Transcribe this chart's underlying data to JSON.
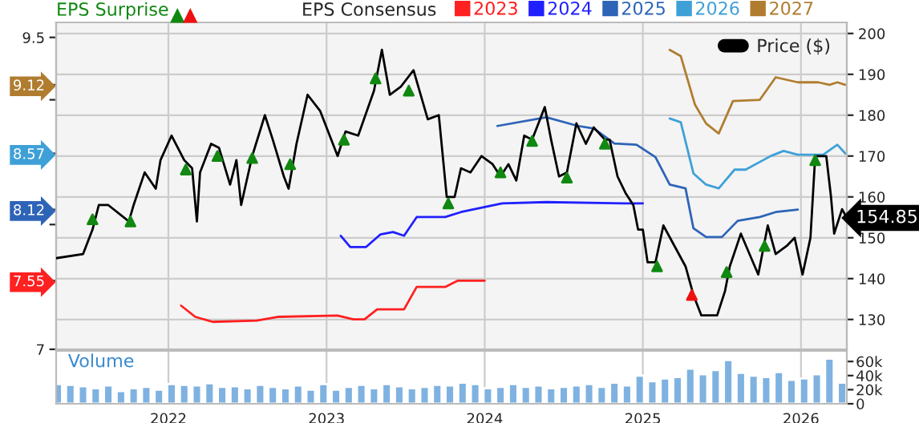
{
  "chart_data": [
    {
      "type": "line",
      "legend_title": "EPS Consensus",
      "legend": "top right",
      "grid": true,
      "tick_labels": "y",
      "xlim": [
        2021.29,
        2026.29
      ],
      "xticks": [
        {
          "value": 2022,
          "label": null
        },
        {
          "value": 2023,
          "label": null
        },
        {
          "value": 2024,
          "label": null
        },
        {
          "value": 2025,
          "label": null
        },
        {
          "value": 2026,
          "label": null
        }
      ],
      "ylim": [
        7.0,
        9.62
      ],
      "yticks": [
        7,
        7.55,
        {
          "value": 8,
          "label": null
        },
        8.12,
        8.57,
        {
          "value": 9,
          "label": null
        },
        9.12,
        9.5
      ],
      "y2lim": [
        122.7,
        202.7
      ],
      "y2ticks": [
        130,
        140,
        150,
        160,
        170,
        180,
        190,
        200
      ],
      "series": [
        {
          "name": "2023",
          "color": "#ff2020",
          "axis": "y",
          "x": [
            2022.08,
            2022.17,
            2022.28,
            2022.56,
            2022.69,
            2023.07,
            2023.17,
            2023.24,
            2023.32,
            2023.49,
            2023.57,
            2023.75,
            2023.83,
            2024.0
          ],
          "values": [
            7.35,
            7.26,
            7.22,
            7.23,
            7.26,
            7.27,
            7.24,
            7.24,
            7.32,
            7.32,
            7.5,
            7.5,
            7.55,
            7.55
          ]
        },
        {
          "name": "2024",
          "color": "#2020ff",
          "axis": "y",
          "x": [
            2023.09,
            2023.15,
            2023.25,
            2023.34,
            2023.42,
            2023.49,
            2023.57,
            2023.75,
            2023.85,
            2024.11,
            2024.39,
            2024.89,
            2025.0
          ],
          "values": [
            7.91,
            7.82,
            7.82,
            7.92,
            7.94,
            7.91,
            8.06,
            8.06,
            8.1,
            8.17,
            8.18,
            8.17,
            8.17
          ]
        },
        {
          "name": "2025",
          "color": "#2e64b8",
          "axis": "y",
          "x": [
            2024.08,
            2024.39,
            2024.59,
            2024.69,
            2024.82,
            2024.96,
            2025.08,
            2025.17,
            2025.27,
            2025.32,
            2025.4,
            2025.5,
            2025.6,
            2025.74,
            2025.84,
            2025.98
          ],
          "values": [
            8.79,
            8.86,
            8.79,
            8.77,
            8.65,
            8.64,
            8.54,
            8.32,
            8.29,
            7.97,
            7.9,
            7.9,
            8.03,
            8.06,
            8.1,
            8.12
          ]
        },
        {
          "name": "2026",
          "color": "#3fa0d8",
          "axis": "y",
          "x": [
            2025.17,
            2025.24,
            2025.32,
            2025.4,
            2025.48,
            2025.58,
            2025.65,
            2025.81,
            2025.89,
            2025.98,
            2026.14,
            2026.23,
            2026.28
          ],
          "values": [
            8.85,
            8.82,
            8.41,
            8.32,
            8.29,
            8.44,
            8.44,
            8.55,
            8.59,
            8.56,
            8.56,
            8.64,
            8.57
          ]
        },
        {
          "name": "2027",
          "color": "#b07d30",
          "axis": "y",
          "x": [
            2025.17,
            2025.24,
            2025.33,
            2025.4,
            2025.48,
            2025.57,
            2025.74,
            2025.84,
            2025.98,
            2026.11,
            2026.18,
            2026.23,
            2026.28
          ],
          "values": [
            9.4,
            9.35,
            8.96,
            8.81,
            8.73,
            8.99,
            9.0,
            9.18,
            9.14,
            9.14,
            9.12,
            9.14,
            9.12
          ]
        },
        {
          "name": "Price ($)",
          "color": "#000000",
          "axis": "y2",
          "x": [
            2021.29,
            2021.46,
            2021.52,
            2021.56,
            2021.62,
            2021.75,
            2021.78,
            2021.85,
            2021.92,
            2021.95,
            2022.02,
            2022.1,
            2022.15,
            2022.18,
            2022.2,
            2022.27,
            2022.32,
            2022.39,
            2022.43,
            2022.46,
            2022.53,
            2022.61,
            2022.66,
            2022.73,
            2022.76,
            2022.81,
            2022.88,
            2022.96,
            2023.07,
            2023.12,
            2023.2,
            2023.3,
            2023.35,
            2023.4,
            2023.47,
            2023.55,
            2023.64,
            2023.71,
            2023.76,
            2023.81,
            2023.85,
            2023.91,
            2023.98,
            2024.05,
            2024.1,
            2024.15,
            2024.2,
            2024.25,
            2024.3,
            2024.34,
            2024.38,
            2024.42,
            2024.47,
            2024.52,
            2024.58,
            2024.64,
            2024.69,
            2024.76,
            2024.79,
            2024.84,
            2024.89,
            2024.94,
            2024.97,
            2025.0,
            2025.03,
            2025.08,
            2025.13,
            2025.2,
            2025.27,
            2025.32,
            2025.37,
            2025.47,
            2025.52,
            2025.55,
            2025.62,
            2025.73,
            2025.79,
            2025.84,
            2025.91,
            2025.96,
            2026.01,
            2026.06,
            2026.09,
            2026.16,
            2026.19,
            2026.21,
            2026.26,
            2026.29
          ],
          "values": [
            145,
            146,
            152,
            158,
            158,
            154,
            158,
            166,
            162,
            169,
            175,
            169,
            167,
            154,
            166,
            173,
            172,
            163,
            169,
            158,
            170,
            180,
            174,
            165,
            162,
            173,
            185,
            181,
            170,
            176,
            175,
            186,
            196,
            185,
            187,
            191,
            179,
            180,
            160,
            160,
            167,
            166,
            170,
            168,
            165,
            168,
            164,
            175,
            174,
            178,
            182,
            174,
            165,
            166,
            178,
            173,
            177,
            174,
            174,
            165,
            161,
            158,
            152,
            152,
            144,
            144,
            153,
            148,
            143,
            136,
            131,
            131,
            137,
            143,
            151,
            141,
            153,
            146,
            148,
            150,
            141,
            150,
            170,
            170,
            160,
            151,
            157,
            154.85
          ],
          "value_labels": [
            null,
            null,
            null,
            null,
            null,
            null,
            null,
            null,
            null,
            null,
            null,
            null,
            null,
            null,
            null,
            null,
            null,
            null,
            null,
            null,
            null,
            null,
            null,
            null,
            null,
            null,
            null,
            null,
            null,
            null,
            null,
            null,
            null,
            null,
            null,
            null,
            null,
            null,
            null,
            null,
            null,
            null,
            null,
            null,
            null,
            null,
            null,
            null,
            null,
            null,
            null,
            null,
            null,
            null,
            null,
            null,
            null,
            null,
            null,
            null,
            null,
            null,
            null,
            null,
            null,
            null,
            null,
            null,
            null,
            null,
            null,
            null,
            null,
            null,
            null,
            null,
            null,
            null,
            null,
            null,
            null,
            null,
            null,
            null,
            null,
            null,
            null,
            "154.85"
          ]
        },
        {
          "name": "EPS Surprise",
          "type": "scatter",
          "marker": "triangle",
          "color": "#118811",
          "axis": "y2",
          "x": [
            2021.52,
            2021.76,
            2022.11,
            2022.31,
            2022.53,
            2022.77,
            2023.11,
            2023.31,
            2023.52,
            2023.77,
            2024.1,
            2024.3,
            2024.52,
            2024.76,
            2025.09,
            2025.53,
            2025.77,
            2026.09
          ],
          "values": [
            154.5,
            154,
            166.7,
            170,
            169.5,
            168,
            174,
            189,
            186,
            158.4,
            166,
            173.7,
            164.7,
            173,
            143,
            141.6,
            148,
            169
          ]
        },
        {
          "type": "scatter",
          "marker": "triangle",
          "color": "#ee1111",
          "axis": "y2",
          "x": [
            2025.31
          ],
          "values": [
            136
          ]
        }
      ]
    },
    {
      "type": "bar",
      "title": "Volume",
      "color": "#7fb2e0",
      "grid": "x",
      "xlim": [
        2021.29,
        2026.29
      ],
      "xticks": [
        2022,
        2023,
        2024,
        2025,
        2026
      ],
      "ylim": [
        0,
        75000
      ],
      "yticks": [
        0,
        {
          "value": 20000,
          "label": "20k"
        },
        {
          "value": 40000,
          "label": "40k"
        },
        {
          "value": 60000,
          "label": "60k"
        }
      ],
      "x": [
        2021.3,
        2021.38,
        2021.46,
        2021.54,
        2021.62,
        2021.7,
        2021.78,
        2021.86,
        2021.94,
        2022.02,
        2022.1,
        2022.18,
        2022.26,
        2022.34,
        2022.42,
        2022.5,
        2022.58,
        2022.66,
        2022.74,
        2022.82,
        2022.9,
        2022.98,
        2023.06,
        2023.14,
        2023.22,
        2023.3,
        2023.38,
        2023.46,
        2023.54,
        2023.62,
        2023.7,
        2023.78,
        2023.86,
        2023.94,
        2024.02,
        2024.1,
        2024.18,
        2024.26,
        2024.34,
        2024.42,
        2024.5,
        2024.58,
        2024.66,
        2024.74,
        2024.82,
        2024.9,
        2024.98,
        2025.06,
        2025.14,
        2025.22,
        2025.3,
        2025.38,
        2025.46,
        2025.54,
        2025.62,
        2025.7,
        2025.78,
        2025.86,
        2025.94,
        2026.02,
        2026.1,
        2026.18,
        2026.26
      ],
      "values": [
        28000,
        27000,
        25000,
        22000,
        26000,
        18000,
        22000,
        24000,
        20000,
        28000,
        27000,
        26000,
        29000,
        24000,
        25000,
        22000,
        27000,
        24000,
        22000,
        26000,
        20000,
        28000,
        20000,
        24000,
        27000,
        22000,
        28000,
        25000,
        22000,
        24000,
        27000,
        26000,
        30000,
        28000,
        22000,
        24000,
        28000,
        24000,
        26000,
        22000,
        24000,
        26000,
        28000,
        24000,
        30000,
        26000,
        40000,
        32000,
        36000,
        38000,
        50000,
        42000,
        48000,
        62000,
        44000,
        40000,
        38000,
        45000,
        34000,
        36000,
        42000,
        64000,
        30000
      ]
    }
  ]
}
